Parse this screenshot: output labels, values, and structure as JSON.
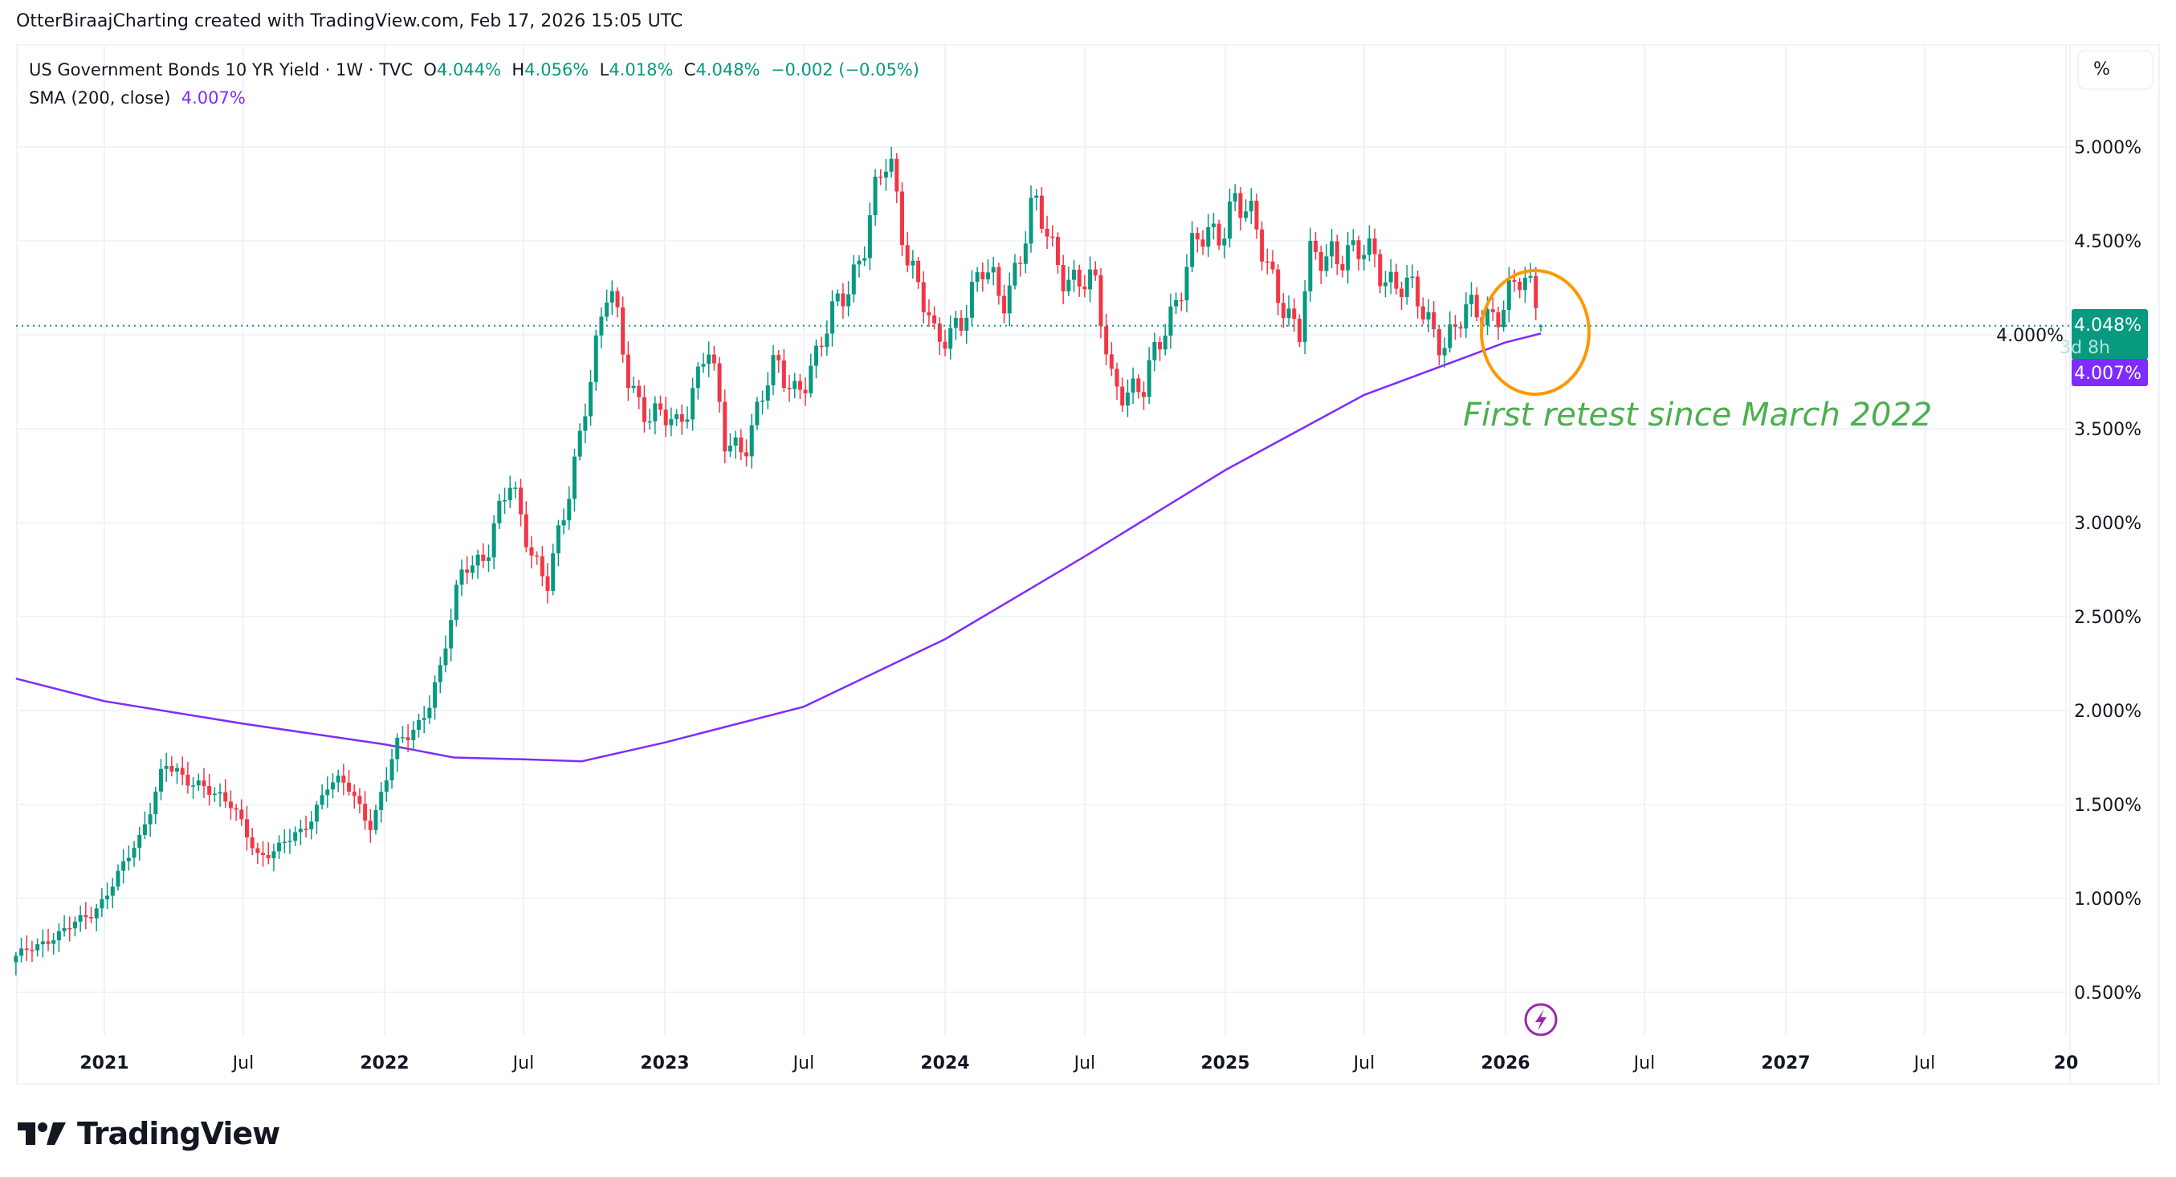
{
  "header": {
    "title": "OtterBiraajCharting created with TradingView.com, Feb 17, 2026 15:05 UTC"
  },
  "legend": {
    "symbol": "US Government Bonds 10 YR Yield · 1W · TVC",
    "o_label": "O",
    "o": "4.044%",
    "h_label": "H",
    "h": "4.056%",
    "l_label": "L",
    "l": "4.018%",
    "c_label": "C",
    "c": "4.048%",
    "change": "−0.002 (−0.05%)",
    "sma_label": "SMA (200, close)",
    "sma_value": "4.007%"
  },
  "scale_button": "%",
  "price_label": {
    "value": "4.048%",
    "countdown": "3d 8h"
  },
  "sma_label": "4.007%",
  "annotation": "First retest since March 2022",
  "logo": "TradingView",
  "colors": {
    "up": "#089981",
    "down": "#F23645",
    "sma": "#7E2CFF",
    "annotation": "#4CAF50",
    "circle": "#FF9800",
    "event": "#9C27B0",
    "grid": "#F0F3FA"
  },
  "icons": {
    "event": "lightning-icon",
    "logo": "tradingview-logo-icon"
  },
  "chart_data": {
    "type": "candlestick",
    "timeframe": "1W",
    "ylim": [
      0.3,
      5.1
    ],
    "y_ticks": [
      "5.000%",
      "4.500%",
      "4.000%",
      "3.500%",
      "3.000%",
      "2.500%",
      "2.000%",
      "1.500%",
      "1.000%",
      "0.500%"
    ],
    "y_tick_values": [
      5.0,
      4.5,
      4.0,
      3.5,
      3.0,
      2.5,
      2.0,
      1.5,
      1.0,
      0.5
    ],
    "x_ticks": [
      {
        "label": "2021",
        "date": "2021-01-01",
        "bold": true
      },
      {
        "label": "Jul",
        "date": "2021-07-01",
        "bold": false
      },
      {
        "label": "2022",
        "date": "2022-01-01",
        "bold": true
      },
      {
        "label": "Jul",
        "date": "2022-07-01",
        "bold": false
      },
      {
        "label": "2023",
        "date": "2023-01-01",
        "bold": true
      },
      {
        "label": "Jul",
        "date": "2023-07-01",
        "bold": false
      },
      {
        "label": "2024",
        "date": "2024-01-01",
        "bold": true
      },
      {
        "label": "Jul",
        "date": "2024-07-01",
        "bold": false
      },
      {
        "label": "2025",
        "date": "2025-01-01",
        "bold": true
      },
      {
        "label": "Jul",
        "date": "2025-07-01",
        "bold": false
      },
      {
        "label": "2026",
        "date": "2026-01-01",
        "bold": true
      },
      {
        "label": "Jul",
        "date": "2026-07-01",
        "bold": false
      },
      {
        "label": "2027",
        "date": "2027-01-01",
        "bold": true
      },
      {
        "label": "Jul",
        "date": "2027-07-01",
        "bold": false
      },
      {
        "label": "20",
        "date": "2028-01-01",
        "bold": true
      }
    ],
    "close_path": [
      [
        "2020-09-07",
        0.68
      ],
      [
        "2020-10-15",
        0.78
      ],
      [
        "2020-11-15",
        0.84
      ],
      [
        "2020-12-15",
        0.92
      ],
      [
        "2021-01-15",
        1.1
      ],
      [
        "2021-02-15",
        1.3
      ],
      [
        "2021-03-20",
        1.74
      ],
      [
        "2021-04-15",
        1.6
      ],
      [
        "2021-05-15",
        1.62
      ],
      [
        "2021-06-15",
        1.48
      ],
      [
        "2021-07-20",
        1.24
      ],
      [
        "2021-08-15",
        1.26
      ],
      [
        "2021-09-15",
        1.35
      ],
      [
        "2021-10-20",
        1.62
      ],
      [
        "2021-11-15",
        1.58
      ],
      [
        "2021-12-15",
        1.4
      ],
      [
        "2022-01-15",
        1.78
      ],
      [
        "2022-02-15",
        1.95
      ],
      [
        "2022-03-15",
        2.2
      ],
      [
        "2022-04-15",
        2.8
      ],
      [
        "2022-05-15",
        2.85
      ],
      [
        "2022-06-15",
        3.2
      ],
      [
        "2022-07-10",
        2.9
      ],
      [
        "2022-08-01",
        2.65
      ],
      [
        "2022-08-25",
        3.05
      ],
      [
        "2022-09-20",
        3.7
      ],
      [
        "2022-10-20",
        4.22
      ],
      [
        "2022-11-15",
        3.8
      ],
      [
        "2022-12-15",
        3.55
      ],
      [
        "2023-01-15",
        3.5
      ],
      [
        "2023-02-25",
        3.95
      ],
      [
        "2023-03-20",
        3.4
      ],
      [
        "2023-04-15",
        3.45
      ],
      [
        "2023-05-25",
        3.8
      ],
      [
        "2023-06-20",
        3.75
      ],
      [
        "2023-07-20",
        3.85
      ],
      [
        "2023-08-20",
        4.25
      ],
      [
        "2023-09-20",
        4.5
      ],
      [
        "2023-10-20",
        4.95
      ],
      [
        "2023-11-15",
        4.45
      ],
      [
        "2023-12-20",
        3.9
      ],
      [
        "2024-01-15",
        4.1
      ],
      [
        "2024-02-20",
        4.3
      ],
      [
        "2024-03-15",
        4.2
      ],
      [
        "2024-04-25",
        4.65
      ],
      [
        "2024-05-20",
        4.45
      ],
      [
        "2024-06-20",
        4.3
      ],
      [
        "2024-07-15",
        4.2
      ],
      [
        "2024-08-05",
        3.8
      ],
      [
        "2024-09-15",
        3.65
      ],
      [
        "2024-10-15",
        4.1
      ],
      [
        "2024-11-15",
        4.4
      ],
      [
        "2024-12-20",
        4.55
      ],
      [
        "2025-01-12",
        4.77
      ],
      [
        "2025-02-15",
        4.45
      ],
      [
        "2025-03-15",
        4.25
      ],
      [
        "2025-04-07",
        3.95
      ],
      [
        "2025-04-20",
        4.35
      ],
      [
        "2025-05-20",
        4.5
      ],
      [
        "2025-06-20",
        4.38
      ],
      [
        "2025-07-15",
        4.42
      ],
      [
        "2025-08-15",
        4.28
      ],
      [
        "2025-09-15",
        4.1
      ],
      [
        "2025-10-15",
        4.0
      ],
      [
        "2025-11-15",
        4.08
      ],
      [
        "2025-12-15",
        4.15
      ],
      [
        "2026-01-20",
        4.24
      ],
      [
        "2026-02-09",
        4.2
      ],
      [
        "2026-02-16",
        4.048
      ]
    ],
    "last_bar": {
      "date": "2026-02-16",
      "open": 4.044,
      "high": 4.056,
      "low": 4.018,
      "close": 4.048
    },
    "sma": {
      "name": "SMA (200, close)",
      "points": [
        [
          "2020-09-07",
          2.17
        ],
        [
          "2021-01-01",
          2.05
        ],
        [
          "2021-07-01",
          1.93
        ],
        [
          "2022-01-01",
          1.82
        ],
        [
          "2022-04-01",
          1.75
        ],
        [
          "2022-07-01",
          1.74
        ],
        [
          "2022-09-15",
          1.73
        ],
        [
          "2023-01-01",
          1.83
        ],
        [
          "2023-07-01",
          2.02
        ],
        [
          "2024-01-01",
          2.38
        ],
        [
          "2024-07-01",
          2.82
        ],
        [
          "2025-01-01",
          3.28
        ],
        [
          "2025-07-01",
          3.68
        ],
        [
          "2026-01-01",
          3.96
        ],
        [
          "2026-02-16",
          4.007
        ]
      ]
    },
    "last_price_line": 4.048
  }
}
